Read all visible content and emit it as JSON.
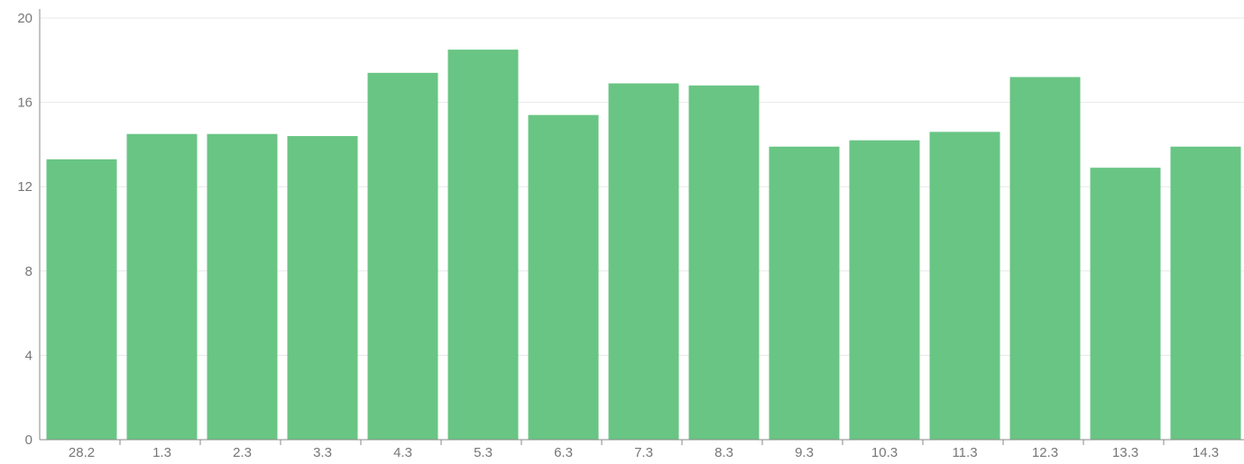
{
  "chart_data": {
    "type": "bar",
    "title": "",
    "xlabel": "",
    "ylabel": "",
    "categories": [
      "28.2",
      "1.3",
      "2.3",
      "3.3",
      "4.3",
      "5.3",
      "6.3",
      "7.3",
      "8.3",
      "9.3",
      "10.3",
      "11.3",
      "12.3",
      "13.3",
      "14.3"
    ],
    "values": [
      13.3,
      14.5,
      14.5,
      14.4,
      17.4,
      18.5,
      15.4,
      16.9,
      16.8,
      13.9,
      14.2,
      14.6,
      17.2,
      12.9,
      13.9
    ],
    "ylim": [
      0,
      20
    ],
    "yticks": [
      "0",
      "4",
      "8",
      "12",
      "16",
      "20"
    ],
    "grid": true,
    "legend": "none",
    "colors": {
      "bar": "#69c584",
      "grid": "#e8e8e8",
      "axis": "#8a8a8a",
      "tick_text": "#777777"
    }
  }
}
